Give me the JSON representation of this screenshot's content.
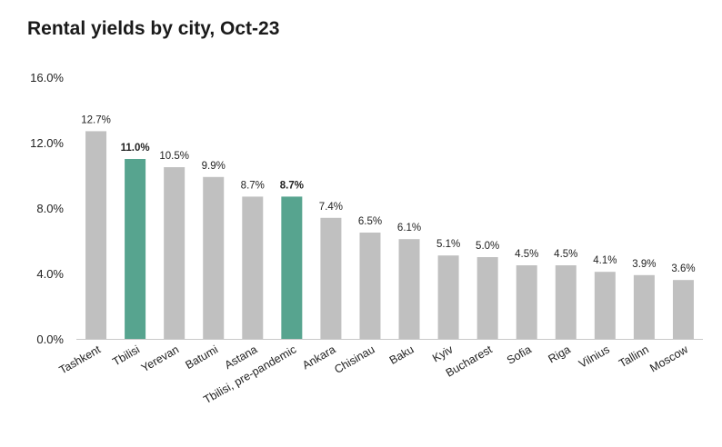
{
  "chart_data": {
    "type": "bar",
    "title": "Rental yields by city, Oct-23",
    "xlabel": "",
    "ylabel": "",
    "ylim": [
      0,
      16
    ],
    "yticks": [
      "0.0%",
      "4.0%",
      "8.0%",
      "12.0%",
      "16.0%"
    ],
    "grid": false,
    "categories": [
      "Tashkent",
      "Tbilisi",
      "Yerevan",
      "Batumi",
      "Astana",
      "Tbilisi, pre-pandemic",
      "Ankara",
      "Chisinau",
      "Baku",
      "Kyiv",
      "Bucharest",
      "Sofia",
      "Riga",
      "Vilnius",
      "Tallinn",
      "Moscow"
    ],
    "values": [
      12.7,
      11.0,
      10.5,
      9.9,
      8.7,
      8.7,
      7.4,
      6.5,
      6.1,
      5.1,
      5.0,
      4.5,
      4.5,
      4.1,
      3.9,
      3.6
    ],
    "data_labels": [
      "12.7%",
      "11.0%",
      "10.5%",
      "9.9%",
      "8.7%",
      "8.7%",
      "7.4%",
      "6.5%",
      "6.1%",
      "5.1%",
      "5.0%",
      "4.5%",
      "4.5%",
      "4.1%",
      "3.9%",
      "3.6%"
    ],
    "highlighted": [
      "Tbilisi",
      "Tbilisi, pre-pandemic"
    ],
    "colors": {
      "bar": "#c0c0c0",
      "highlight": "#57a48f",
      "axis": "#c8c8c8"
    }
  }
}
